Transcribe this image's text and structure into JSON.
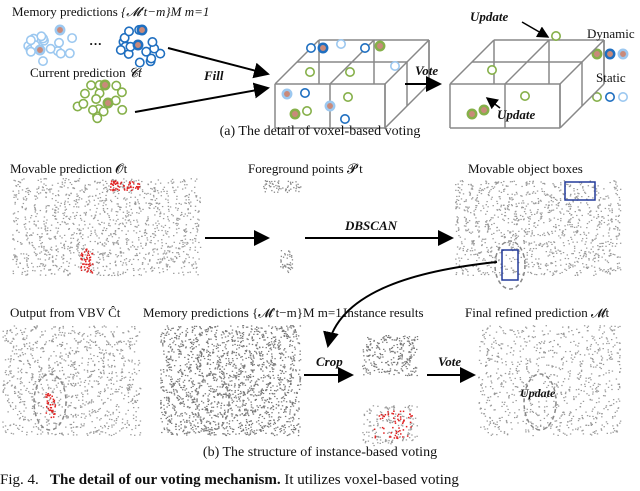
{
  "voxel_voting": {
    "memory_label": "Memory predictions",
    "memory_math": "{𝓜′t−m}M m=1",
    "ellipsis": "···",
    "current_label": "Current prediction",
    "current_math": "𝓒t",
    "fill": "Fill",
    "vote": "Vote",
    "update_top": "Update",
    "update_bottom": "Update",
    "legend_dynamic": "Dynamic",
    "legend_static": "Static",
    "caption": "(a) The detail of voxel-based voting"
  },
  "instance_voting": {
    "movable_label": "Movable prediction 𝓞t",
    "foreground_label": "Foreground points 𝓟′t",
    "boxes_label": "Movable object boxes",
    "dbscan": "DBSCAN",
    "vbv_label": "Output from VBV Ĉt",
    "memory_label": "Memory predictions {𝓜′t−m}M m=1",
    "instance_label": "Instance results",
    "final_label": "Final refined prediction 𝓜t",
    "crop": "Crop",
    "vote": "Vote",
    "update": "Update",
    "caption": "(b) The structure of instance-based voting"
  },
  "figure_caption": {
    "prefix": "Fig. 4.",
    "bold": "The detail of our voting mechanism.",
    "rest": "It utilizes voxel-based voting"
  },
  "colors": {
    "light_blue": "#9cc8f0",
    "dark_blue": "#1f6fc0",
    "green": "#86b04a",
    "dynamic_fill": "#c98a7a",
    "moving": "#e02020"
  }
}
